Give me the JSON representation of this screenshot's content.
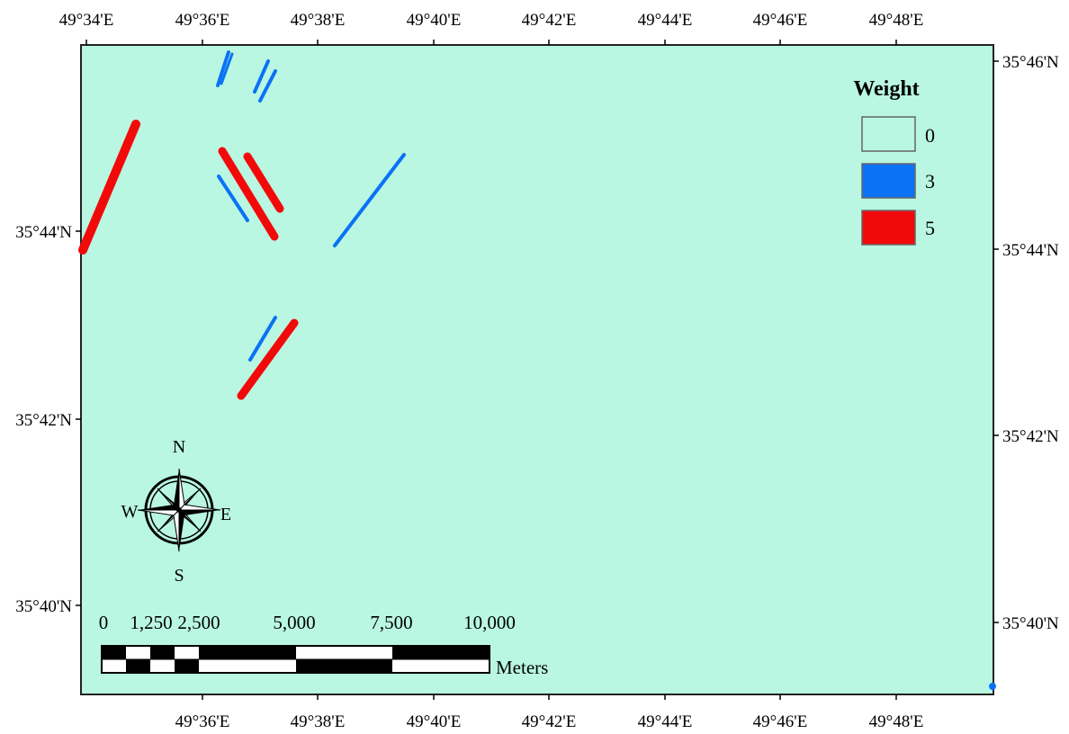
{
  "map": {
    "top_axis_labels": [
      "49°34'E",
      "49°36'E",
      "49°38'E",
      "49°40'E",
      "49°42'E",
      "49°44'E",
      "49°46'E",
      "49°48'E"
    ],
    "bottom_axis_labels": [
      "49°36'E",
      "49°38'E",
      "49°40'E",
      "49°42'E",
      "49°44'E",
      "49°46'E",
      "49°48'E"
    ],
    "left_axis_labels": [
      "35°44'N",
      "35°42'N",
      "35°40'N"
    ],
    "right_axis_labels": [
      "35°46'N",
      "35°44'N",
      "35°42'N",
      "35°40'N"
    ],
    "background_color": "#b9f7e2",
    "features": [
      {
        "name": "red-fault-west",
        "weight": 5
      },
      {
        "name": "red-fault-center-a",
        "weight": 5
      },
      {
        "name": "red-fault-center-b",
        "weight": 5
      },
      {
        "name": "red-fault-south",
        "weight": 5
      },
      {
        "name": "blue-fault-north-a",
        "weight": 3
      },
      {
        "name": "blue-fault-north-b",
        "weight": 3
      },
      {
        "name": "blue-fault-center",
        "weight": 3
      },
      {
        "name": "blue-fault-east",
        "weight": 3
      },
      {
        "name": "blue-fault-south",
        "weight": 3
      }
    ]
  },
  "legend": {
    "title": "Weight",
    "items": [
      {
        "label": "0",
        "color": "#b9f7e2"
      },
      {
        "label": "3",
        "color": "#0b72f5"
      },
      {
        "label": "5",
        "color": "#f20a0a"
      }
    ]
  },
  "compass": {
    "north": "N",
    "south": "S",
    "east": "E",
    "west": "W",
    "icon": "compass-rose-icon"
  },
  "scale_bar": {
    "labels": [
      "0",
      "1,250",
      "2,500",
      "5,000",
      "7,500",
      "10,000"
    ],
    "unit": "Meters"
  }
}
